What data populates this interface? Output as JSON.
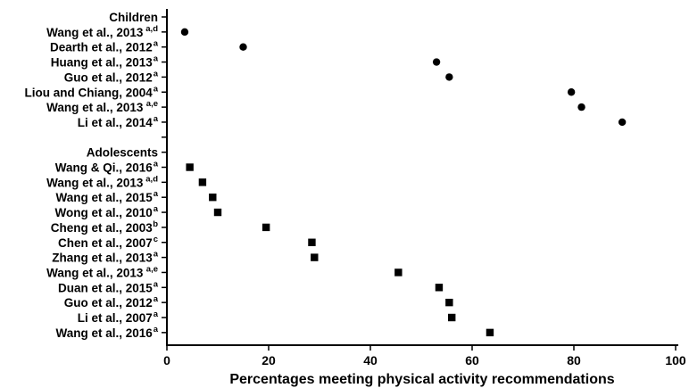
{
  "chart_data": {
    "type": "scatter",
    "xlabel": "Percentages meeting physical activity recommendations",
    "xlim": [
      0,
      100
    ],
    "x_ticks": [
      0,
      20,
      40,
      60,
      80,
      100
    ],
    "grid": false,
    "groups": [
      {
        "name": "Children",
        "marker": "circle",
        "points": [
          {
            "label": "Wang et al., 2013",
            "sup": "a,d",
            "x": 3.5
          },
          {
            "label": "Dearth et al., 2012",
            "sup": "a",
            "x": 15
          },
          {
            "label": "Huang et al., 2013",
            "sup": "a",
            "x": 53
          },
          {
            "label": "Guo et al., 2012",
            "sup": "a",
            "x": 55.5
          },
          {
            "label": "Liou and Chiang, 2004",
            "sup": "a",
            "x": 79.5
          },
          {
            "label": "Wang et al., 2013",
            "sup": "a,e",
            "x": 81.5
          },
          {
            "label": "Li et al., 2014",
            "sup": "a",
            "x": 89.5
          }
        ]
      },
      {
        "name": "Adolescents",
        "marker": "square",
        "points": [
          {
            "label": "Wang & Qi., 2016",
            "sup": "a",
            "x": 4.5
          },
          {
            "label": "Wang et al., 2013",
            "sup": "a,d",
            "x": 7
          },
          {
            "label": "Wang et al., 2015",
            "sup": "a",
            "x": 9
          },
          {
            "label": "Wong et al., 2010",
            "sup": "a",
            "x": 10
          },
          {
            "label": "Cheng et al., 2003",
            "sup": "b",
            "x": 19.5
          },
          {
            "label": "Chen et al., 2007",
            "sup": "c",
            "x": 28.5
          },
          {
            "label": "Zhang et al., 2013",
            "sup": "a",
            "x": 29
          },
          {
            "label": "Wang et al., 2013",
            "sup": "a,e",
            "x": 45.5
          },
          {
            "label": "Duan et al., 2015",
            "sup": "a",
            "x": 53.5
          },
          {
            "label": "Guo et al., 2012",
            "sup": "a",
            "x": 55.5
          },
          {
            "label": "Li et al., 2007",
            "sup": "a",
            "x": 56
          },
          {
            "label": "Wang et al., 2016",
            "sup": "a",
            "x": 63.5
          }
        ]
      }
    ]
  }
}
